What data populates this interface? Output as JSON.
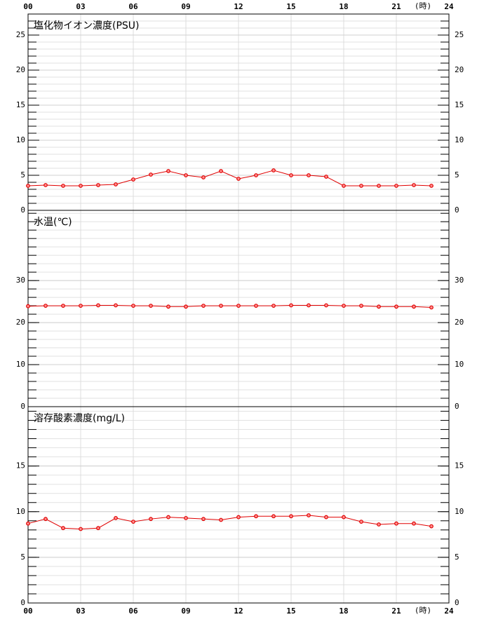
{
  "chart_data": [
    {
      "type": "line",
      "title": "塩化物イオン濃度(PSU)",
      "xaxis_position": "top",
      "xlabel": "(時)",
      "x": [
        0,
        1,
        2,
        3,
        4,
        5,
        6,
        7,
        8,
        9,
        10,
        11,
        12,
        13,
        14,
        15,
        16,
        17,
        18,
        19,
        20,
        21,
        22,
        23
      ],
      "xlim": [
        0,
        24
      ],
      "xticks": [
        {
          "value": 0,
          "label": "00"
        },
        {
          "value": 3,
          "label": "03"
        },
        {
          "value": 6,
          "label": "06"
        },
        {
          "value": 9,
          "label": "09"
        },
        12,
        15,
        18,
        21,
        24
      ],
      "series": [
        {
          "color": "#e00000",
          "values": [
            3.5,
            3.6,
            3.5,
            3.5,
            3.6,
            3.7,
            4.4,
            5.1,
            5.6,
            5.0,
            4.7,
            5.6,
            4.5,
            5.0,
            5.7,
            5.0,
            5.0,
            4.8,
            3.5,
            3.5,
            3.5,
            3.5,
            3.6,
            3.5
          ]
        }
      ],
      "ylim": [
        0,
        28
      ],
      "yticks": [
        0,
        5,
        10,
        15,
        20,
        25
      ],
      "grid": true
    },
    {
      "type": "line",
      "title": "水温(℃)",
      "x": [
        0,
        1,
        2,
        3,
        4,
        5,
        6,
        7,
        8,
        9,
        10,
        11,
        12,
        13,
        14,
        15,
        16,
        17,
        18,
        19,
        20,
        21,
        22,
        23
      ],
      "xlim": [
        0,
        24
      ],
      "xticks": [
        0,
        3,
        6,
        9,
        12,
        15,
        18,
        21,
        24
      ],
      "series": [
        {
          "color": "#e00000",
          "values": [
            23.9,
            24.0,
            24.0,
            24.0,
            24.1,
            24.1,
            24.0,
            24.0,
            23.8,
            23.8,
            24.0,
            24.0,
            24.0,
            24.0,
            24.0,
            24.1,
            24.1,
            24.1,
            24.0,
            24.0,
            23.8,
            23.8,
            23.8,
            23.6
          ]
        }
      ],
      "ylim": [
        0,
        46.7
      ],
      "yticks": [
        0,
        10,
        20,
        30
      ],
      "grid": true
    },
    {
      "type": "line",
      "title": "溶存酸素濃度(mg/L)",
      "xaxis_position": "bottom",
      "xlabel": "(時)",
      "x": [
        0,
        1,
        2,
        3,
        4,
        5,
        6,
        7,
        8,
        9,
        10,
        11,
        12,
        13,
        14,
        15,
        16,
        17,
        18,
        19,
        20,
        21,
        22,
        23
      ],
      "xlim": [
        0,
        24
      ],
      "xticks": [
        {
          "value": 0,
          "label": "00"
        },
        {
          "value": 3,
          "label": "03"
        },
        {
          "value": 6,
          "label": "06"
        },
        {
          "value": 9,
          "label": "09"
        },
        12,
        15,
        18,
        21,
        24
      ],
      "series": [
        {
          "color": "#e00000",
          "values": [
            8.7,
            9.2,
            8.2,
            8.1,
            8.2,
            9.3,
            8.9,
            9.2,
            9.4,
            9.3,
            9.2,
            9.1,
            9.4,
            9.5,
            9.5,
            9.5,
            9.6,
            9.4,
            9.4,
            8.9,
            8.6,
            8.7,
            8.7,
            8.4
          ]
        }
      ],
      "ylim": [
        0,
        21.5
      ],
      "yticks": [
        0,
        5,
        10,
        15
      ],
      "grid": true
    }
  ]
}
